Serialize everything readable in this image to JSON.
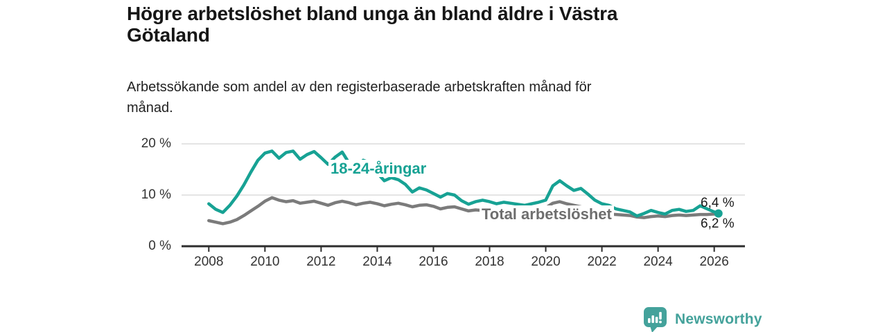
{
  "header": {
    "title": "Högre arbetslöshet bland unga än bland äldre i Västra Götaland",
    "subtitle": "Arbetssökande som andel av den registerbaserade arbetskraften månad för månad."
  },
  "chart_data": {
    "type": "line",
    "title": "Högre arbetslöshet bland unga än bland äldre i Västra Götaland",
    "subtitle": "Arbetssökande som andel av den registerbaserade arbetskraften månad för månad.",
    "xlabel": "",
    "ylabel": "",
    "xlim": [
      2007,
      2027.1
    ],
    "ylim": [
      0,
      20
    ],
    "grid": "horizontal",
    "legend": "inline-labels",
    "sampling": "quarterly estimates read from monthly curve",
    "x_ticks": [
      2008,
      2010,
      2012,
      2014,
      2016,
      2018,
      2020,
      2022,
      2024,
      2026
    ],
    "y_ticks": [
      {
        "value": 0,
        "label": "0 %"
      },
      {
        "value": 10,
        "label": "10 %"
      },
      {
        "value": 20,
        "label": "20 %"
      }
    ],
    "x": [
      2008,
      2008.25,
      2008.5,
      2008.75,
      2009,
      2009.25,
      2009.5,
      2009.75,
      2010,
      2010.25,
      2010.5,
      2010.75,
      2011,
      2011.25,
      2011.5,
      2011.75,
      2012,
      2012.25,
      2012.5,
      2012.75,
      2013,
      2013.25,
      2013.5,
      2013.75,
      2014,
      2014.25,
      2014.5,
      2014.75,
      2015,
      2015.25,
      2015.5,
      2015.75,
      2016,
      2016.25,
      2016.5,
      2016.75,
      2017,
      2017.25,
      2017.5,
      2017.75,
      2018,
      2018.25,
      2018.5,
      2018.75,
      2019,
      2019.25,
      2019.5,
      2019.75,
      2020,
      2020.25,
      2020.5,
      2020.75,
      2021,
      2021.25,
      2021.5,
      2021.75,
      2022,
      2022.25,
      2022.5,
      2022.75,
      2023,
      2023.25,
      2023.5,
      2023.75,
      2024,
      2024.25,
      2024.5,
      2024.75,
      2025,
      2025.25,
      2025.5,
      2025.75,
      2026,
      2026.15
    ],
    "series": [
      {
        "name": "18-24-åringar",
        "color": "#17a294",
        "label_color": "#17a294",
        "end_label": "6,4 %",
        "end_value": 6.4,
        "values": [
          8.3,
          7.2,
          6.6,
          8.0,
          9.8,
          12.0,
          14.5,
          16.8,
          18.2,
          18.6,
          17.2,
          18.3,
          18.6,
          17.0,
          17.9,
          18.5,
          17.3,
          16.0,
          17.4,
          18.4,
          16.2,
          15.4,
          16.8,
          16.3,
          14.3,
          12.8,
          13.4,
          13.0,
          12.1,
          10.6,
          11.4,
          11.0,
          10.3,
          9.6,
          10.3,
          10.0,
          8.9,
          8.2,
          8.7,
          9.0,
          8.7,
          8.3,
          8.6,
          8.4,
          8.2,
          8.0,
          8.3,
          8.6,
          9.0,
          11.8,
          12.8,
          11.8,
          10.9,
          11.3,
          10.2,
          9.0,
          8.3,
          8.0,
          7.3,
          7.0,
          6.7,
          5.9,
          6.4,
          7.0,
          6.6,
          6.3,
          7.0,
          7.2,
          6.8,
          7.0,
          7.9,
          7.3,
          6.7,
          6.4
        ]
      },
      {
        "name": "Total arbetslöshet",
        "color": "#7b7b7b",
        "label_color": "#6e6e6e",
        "end_label": "6,2 %",
        "end_value": 6.2,
        "values": [
          5.0,
          4.7,
          4.4,
          4.7,
          5.2,
          6.0,
          6.9,
          7.8,
          8.8,
          9.5,
          9.0,
          8.7,
          8.9,
          8.4,
          8.6,
          8.8,
          8.4,
          8.0,
          8.5,
          8.8,
          8.5,
          8.1,
          8.4,
          8.6,
          8.3,
          7.9,
          8.2,
          8.4,
          8.1,
          7.7,
          8.0,
          8.1,
          7.8,
          7.3,
          7.6,
          7.7,
          7.3,
          6.9,
          7.1,
          7.0,
          6.9,
          6.7,
          6.8,
          6.9,
          6.8,
          6.9,
          7.0,
          7.2,
          7.5,
          8.4,
          8.7,
          8.3,
          8.0,
          7.7,
          7.2,
          6.9,
          6.6,
          6.3,
          6.2,
          6.1,
          6.0,
          5.7,
          5.6,
          5.8,
          5.9,
          5.8,
          6.0,
          6.1,
          6.0,
          6.1,
          6.2,
          6.2,
          6.3,
          6.2
        ]
      }
    ]
  },
  "branding": {
    "name": "Newsworthy",
    "color": "#44a29b",
    "icon": "bar-chart-speech-bubble-icon"
  }
}
